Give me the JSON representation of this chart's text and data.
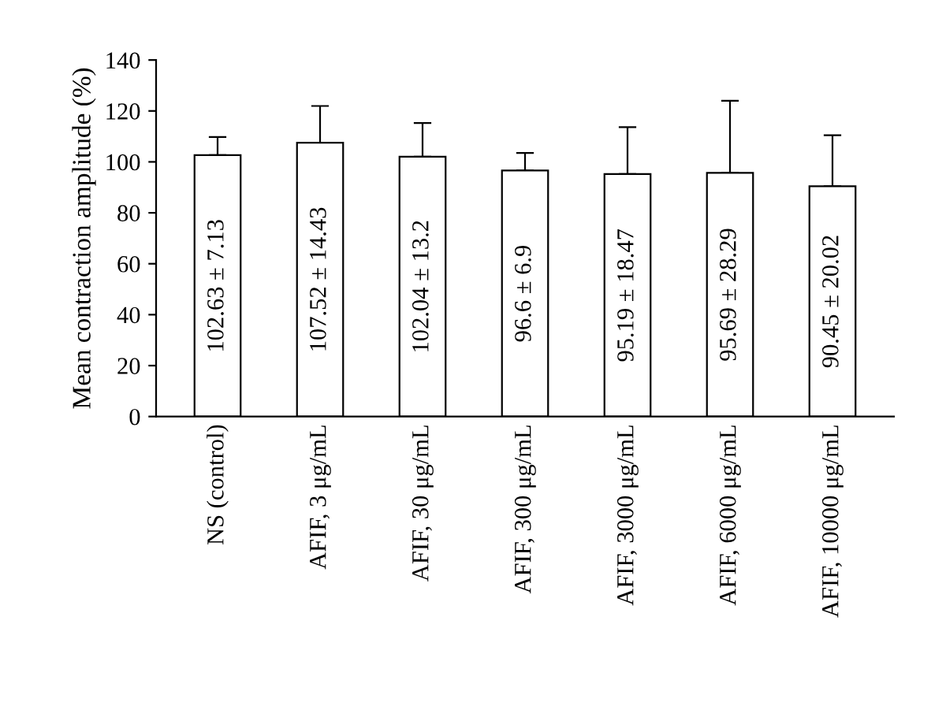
{
  "chart_data": {
    "type": "bar",
    "ylabel": "Mean contraction amplitude (%)",
    "categories": [
      "NS (control)",
      "AFIF, 3 μg/mL",
      "AFIF, 30 μg/mL",
      "AFIF, 300 μg/mL",
      "AFIF, 3000 μg/mL",
      "AFIF, 6000 μg/mL",
      "AFIF, 10000 μg/mL"
    ],
    "values": [
      102.63,
      107.52,
      102.04,
      96.6,
      95.19,
      95.69,
      90.45
    ],
    "errors": [
      [
        102.63,
        109.76
      ],
      [
        107.52,
        121.95
      ],
      [
        102.04,
        115.24
      ],
      [
        96.6,
        103.5
      ],
      [
        95.19,
        113.66
      ],
      [
        95.69,
        123.98
      ],
      [
        90.45,
        110.47
      ]
    ],
    "value_labels": [
      "102.63 ± 7.13",
      "107.52 ± 14.43",
      "102.04 ± 13.2",
      "96.6 ± 6.9",
      "95.19 ± 18.47",
      "95.69 ± 28.29",
      "90.45 ± 20.02"
    ],
    "color": "#ffffff",
    "ylim": [
      0,
      140
    ],
    "yticks": [
      0,
      20,
      40,
      60,
      80,
      100,
      120,
      140
    ],
    "grid": false
  }
}
